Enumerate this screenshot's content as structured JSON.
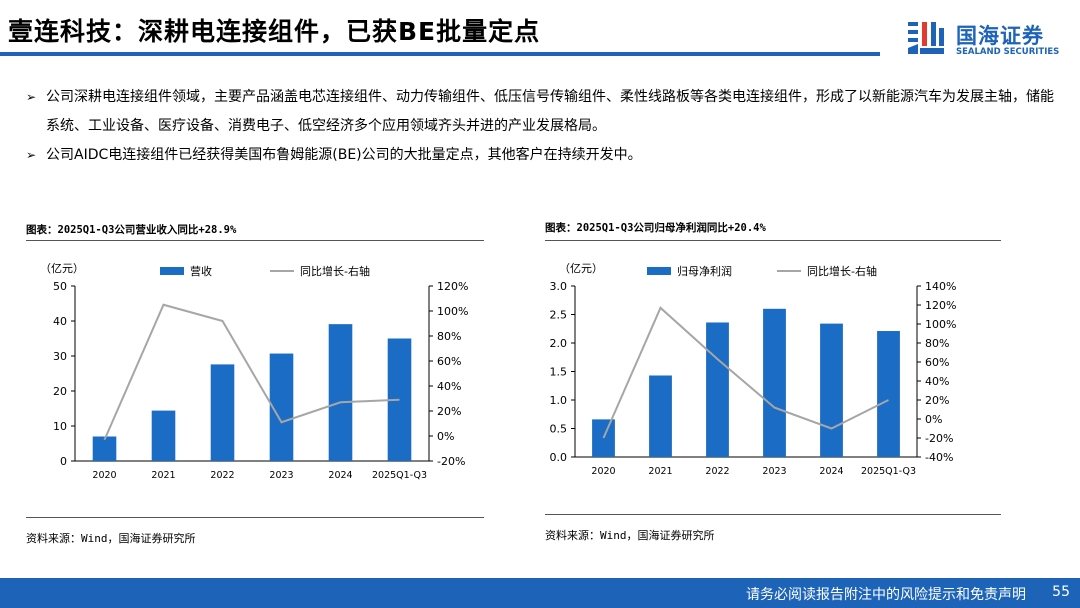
{
  "header": {
    "title": "壹连科技：深耕电连接组件，已获BE批量定点",
    "logo_cn": "国海证券",
    "logo_en": "SEALAND SECURITIES"
  },
  "bullets": [
    "公司深耕电连接组件领域，主要产品涵盖电芯连接组件、动力传输组件、低压信号传输组件、柔性线路板等各类电连接组件，形成了以新能源汽车为发展主轴，储能系统、工业设备、医疗设备、消费电子、低空经济多个应用领域齐头并进的产业发展格局。",
    "公司AIDC电连接组件已经获得美国布鲁姆能源(BE)公司的大批量定点，其他客户在持续开发中。"
  ],
  "chart_data": [
    {
      "type": "bar",
      "title": "图表：2025Q1-Q3公司营业收入同比+28.9%",
      "unit_label": "（亿元）",
      "categories": [
        "2020",
        "2021",
        "2022",
        "2023",
        "2024",
        "2025Q1-Q3"
      ],
      "series": [
        {
          "name": "营收",
          "kind": "bar",
          "axis": "left",
          "values": [
            7.0,
            14.4,
            27.6,
            30.7,
            39.1,
            35.0
          ]
        },
        {
          "name": "同比增长-右轴",
          "kind": "line",
          "axis": "right",
          "values": [
            -3,
            105,
            92,
            11,
            27,
            29
          ]
        }
      ],
      "left_axis": {
        "min": 0,
        "max": 50,
        "ticks": [
          "0",
          "10",
          "20",
          "30",
          "40",
          "50"
        ]
      },
      "right_axis": {
        "min": -20,
        "max": 120,
        "ticks": [
          "-20%",
          "0%",
          "20%",
          "40%",
          "60%",
          "80%",
          "100%",
          "120%"
        ]
      },
      "source": "资料来源：Wind，国海证券研究所"
    },
    {
      "type": "bar",
      "title": "图表：2025Q1-Q3公司归母净利润同比+20.4%",
      "unit_label": "（亿元）",
      "categories": [
        "2020",
        "2021",
        "2022",
        "2023",
        "2024",
        "2025Q1-Q3"
      ],
      "series": [
        {
          "name": "归母净利润",
          "kind": "bar",
          "axis": "left",
          "values": [
            0.66,
            1.43,
            2.36,
            2.6,
            2.34,
            2.21
          ]
        },
        {
          "name": "同比增长-右轴",
          "kind": "line",
          "axis": "right",
          "values": [
            -20,
            117,
            63,
            12,
            -10,
            20
          ]
        }
      ],
      "left_axis": {
        "min": 0,
        "max": 3.0,
        "ticks": [
          "0.0",
          "0.5",
          "1.0",
          "1.5",
          "2.0",
          "2.5",
          "3.0"
        ]
      },
      "right_axis": {
        "min": -40,
        "max": 140,
        "ticks": [
          "-40%",
          "-20%",
          "0%",
          "20%",
          "40%",
          "60%",
          "80%",
          "100%",
          "120%",
          "140%"
        ]
      },
      "source": "资料来源：Wind，国海证券研究所"
    }
  ],
  "colors": {
    "bar": "#1a6cc4",
    "line": "#a6a6a6",
    "brand": "#1d64b9"
  },
  "footer": {
    "disclaimer": "请务必阅读报告附注中的风险提示和免责声明",
    "page": "55"
  }
}
